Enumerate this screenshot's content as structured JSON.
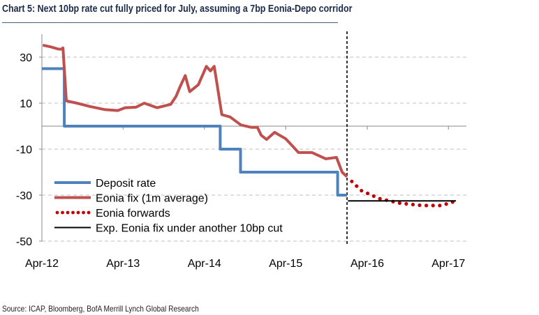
{
  "title": "Chart 5: Next 10bp rate cut fully priced for July, assuming a 7bp Eonia-Depo corridor",
  "source": "Source: ICAP, Bloomberg, BofA Merrill Lynch Global Research",
  "chart_data": {
    "type": "line",
    "title": "Chart 5: Next 10bp rate cut fully priced for July, assuming a 7bp Eonia-Depo corridor",
    "xlabel": "",
    "ylabel": "",
    "xlim": [
      "2012-04-01",
      "2017-06-15"
    ],
    "ylim": [
      -50,
      40
    ],
    "y_ticks": [
      30,
      10,
      -10,
      -30,
      -50
    ],
    "y_tick_labels": [
      "30",
      "10",
      "-10",
      "-30",
      "-50"
    ],
    "x_ticks": [
      "2012-04-01",
      "2013-04-01",
      "2014-04-01",
      "2015-04-01",
      "2016-04-01",
      "2017-04-01"
    ],
    "x_tick_labels": [
      "Apr-12",
      "Apr-13",
      "Apr-14",
      "Apr-15",
      "Apr-16",
      "Apr-17"
    ],
    "grid": "horizontal dashed",
    "legend_position": "bottom-left",
    "vertical_marker": {
      "date": "2016-01-01",
      "style": "dashed",
      "color": "#000000"
    },
    "series": [
      {
        "name": "Deposit rate",
        "color": "#4f81bd",
        "style": "step",
        "points": [
          [
            "2012-04-01",
            25
          ],
          [
            "2012-07-11",
            25
          ],
          [
            "2012-07-11",
            0
          ],
          [
            "2014-06-11",
            0
          ],
          [
            "2014-06-11",
            -10
          ],
          [
            "2014-09-10",
            -10
          ],
          [
            "2014-09-10",
            -20
          ],
          [
            "2015-11-20",
            -20
          ],
          [
            "2015-11-20",
            -30
          ],
          [
            "2016-01-01",
            -30
          ]
        ]
      },
      {
        "name": "Eonia fix (1m average)",
        "color": "#c0504d",
        "style": "solid",
        "points": [
          [
            "2012-04-05",
            35.2
          ],
          [
            "2012-05-10",
            34.5
          ],
          [
            "2012-06-15",
            33.5
          ],
          [
            "2012-06-28",
            33.5
          ],
          [
            "2012-07-05",
            34
          ],
          [
            "2012-07-20",
            11
          ],
          [
            "2012-09-05",
            10
          ],
          [
            "2012-11-05",
            8.5
          ],
          [
            "2013-01-08",
            7.2
          ],
          [
            "2013-03-08",
            6.8
          ],
          [
            "2013-04-10",
            8
          ],
          [
            "2013-05-28",
            8.2
          ],
          [
            "2013-07-05",
            10
          ],
          [
            "2013-09-01",
            8
          ],
          [
            "2013-11-01",
            9.5
          ],
          [
            "2013-11-25",
            13
          ],
          [
            "2013-12-12",
            17
          ],
          [
            "2014-01-05",
            22
          ],
          [
            "2014-01-25",
            15
          ],
          [
            "2014-03-05",
            18
          ],
          [
            "2014-04-10",
            26
          ],
          [
            "2014-04-28",
            24
          ],
          [
            "2014-05-15",
            26
          ],
          [
            "2014-05-28",
            18
          ],
          [
            "2014-06-18",
            5
          ],
          [
            "2014-07-25",
            4
          ],
          [
            "2014-09-12",
            0.5
          ],
          [
            "2014-10-28",
            -0.5
          ],
          [
            "2014-11-25",
            -0.5
          ],
          [
            "2014-12-12",
            -4
          ],
          [
            "2015-01-05",
            -5.8
          ],
          [
            "2015-02-10",
            -2.7
          ],
          [
            "2015-04-01",
            -5.5
          ],
          [
            "2015-05-05",
            -9
          ],
          [
            "2015-05-28",
            -11.5
          ],
          [
            "2015-07-28",
            -11.5
          ],
          [
            "2015-09-28",
            -14.2
          ],
          [
            "2015-11-15",
            -13.6
          ],
          [
            "2015-12-10",
            -20
          ],
          [
            "2016-01-01",
            -22
          ]
        ]
      },
      {
        "name": "Eonia forwards",
        "color": "#c00000",
        "style": "dotted",
        "points": [
          [
            "2016-01-01",
            -22
          ],
          [
            "2016-03-05",
            -28
          ],
          [
            "2016-05-25",
            -31.5
          ],
          [
            "2016-08-28",
            -33.5
          ],
          [
            "2016-12-05",
            -34.5
          ],
          [
            "2017-03-01",
            -34.5
          ],
          [
            "2017-04-20",
            -33
          ]
        ]
      },
      {
        "name": "Exp. Eonia fix under another 10bp cut",
        "color": "#000000",
        "style": "solid",
        "points": [
          [
            "2016-01-05",
            -32.5
          ],
          [
            "2017-05-05",
            -32.5
          ]
        ]
      }
    ]
  }
}
